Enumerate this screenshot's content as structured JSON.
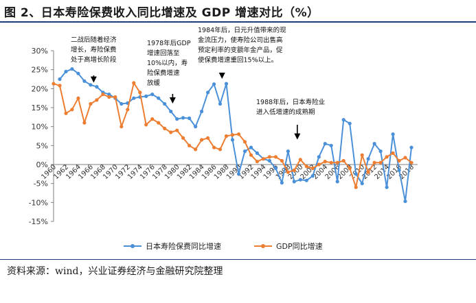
{
  "figure": {
    "title": "图 2、日本寿险保费收入同比增速及 GDP 增速对比（%）",
    "source": "资料来源：wind，兴业证券经济与金融研究院整理"
  },
  "colors": {
    "series_life": "#4a90d9",
    "series_gdp": "#ed7d31",
    "rule": "#1f3d7a"
  },
  "chart_data": {
    "type": "line",
    "title": "",
    "xlabel": "",
    "ylabel": "",
    "ylim": [
      -15,
      30
    ],
    "y_ticks": [
      "30%",
      "25%",
      "20%",
      "15%",
      "10%",
      "5%",
      "0%",
      "-5%",
      "-10%",
      "-15%"
    ],
    "y_tick_values": [
      30,
      25,
      20,
      15,
      10,
      5,
      0,
      -5,
      -10,
      -15
    ],
    "xlim": [
      1960,
      2019
    ],
    "x_ticks": [
      "1960",
      "1962",
      "1964",
      "1966",
      "1968",
      "1970",
      "1972",
      "1974",
      "1976",
      "1978",
      "1980",
      "1982",
      "1984",
      "1986",
      "1988",
      "1990",
      "1992",
      "1994",
      "1996",
      "1998",
      "2000",
      "2002",
      "2004",
      "2006",
      "2008",
      "2010",
      "2012",
      "2014",
      "2016",
      "2018"
    ],
    "x_tick_values": [
      1960,
      1962,
      1964,
      1966,
      1968,
      1970,
      1972,
      1974,
      1976,
      1978,
      1980,
      1982,
      1984,
      1986,
      1988,
      1990,
      1992,
      1994,
      1996,
      1998,
      2000,
      2002,
      2004,
      2006,
      2008,
      2010,
      2012,
      2014,
      2016,
      2018
    ],
    "grid": false,
    "legend_position": "bottom",
    "series": [
      {
        "name": "日本寿险保费同比增速",
        "color": "#4a90d9",
        "x": [
          1961,
          1962,
          1963,
          1964,
          1965,
          1966,
          1967,
          1968,
          1969,
          1970,
          1971,
          1972,
          1973,
          1974,
          1975,
          1976,
          1977,
          1978,
          1979,
          1980,
          1981,
          1982,
          1983,
          1984,
          1985,
          1986,
          1987,
          1988,
          1989,
          1990,
          1991,
          1992,
          1993,
          1994,
          1995,
          1996,
          1997,
          1998,
          1999,
          2000,
          2001,
          2002,
          2003,
          2004,
          2005,
          2006,
          2007,
          2008,
          2009,
          2010,
          2011,
          2012,
          2013,
          2014,
          2015,
          2016,
          2017,
          2018
        ],
        "values": [
          22.5,
          24.5,
          25.2,
          24.0,
          22.0,
          21.0,
          20.5,
          19.0,
          18.5,
          17.5,
          16.0,
          16.2,
          17.5,
          17.8,
          18.0,
          18.5,
          17.5,
          16.0,
          14.0,
          12.0,
          12.3,
          12.2,
          10.0,
          14.0,
          19.0,
          21.2,
          16.0,
          21.3,
          6.5,
          -2.5,
          3.5,
          4.5,
          3.0,
          1.5,
          1.0,
          -1.0,
          -4.8,
          3.5,
          -4.5,
          -4.0,
          -4.2,
          -3.0,
          2.0,
          5.5,
          5.0,
          -4.5,
          11.8,
          10.8,
          -2.5,
          -5.0,
          1.5,
          5.5,
          3.5,
          -6.0,
          8.0,
          -1.5,
          -9.7,
          4.5
        ]
      },
      {
        "name": "GDP同比增速",
        "color": "#ed7d31",
        "x": [
          1960,
          1961,
          1962,
          1963,
          1964,
          1965,
          1966,
          1967,
          1968,
          1969,
          1970,
          1971,
          1972,
          1973,
          1974,
          1975,
          1976,
          1977,
          1978,
          1979,
          1980,
          1981,
          1982,
          1983,
          1984,
          1985,
          1986,
          1987,
          1988,
          1989,
          1990,
          1991,
          1992,
          1993,
          1994,
          1995,
          1996,
          1997,
          1998,
          1999,
          2000,
          2001,
          2002,
          2003,
          2004,
          2005,
          2006,
          2007,
          2008,
          2009,
          2010,
          2011,
          2012,
          2013,
          2014,
          2015,
          2016,
          2017,
          2018
        ],
        "values": [
          21.3,
          20.8,
          13.5,
          14.5,
          17.5,
          11.0,
          16.0,
          17.0,
          18.5,
          17.8,
          17.8,
          10.0,
          14.5,
          21.5,
          19.0,
          10.5,
          12.0,
          11.0,
          9.5,
          8.5,
          9.0,
          7.0,
          5.0,
          4.0,
          6.5,
          7.0,
          4.5,
          4.0,
          7.5,
          7.8,
          8.0,
          6.0,
          2.5,
          0.8,
          1.5,
          2.0,
          2.0,
          1.0,
          -2.0,
          -1.5,
          1.3,
          -0.5,
          -1.0,
          0.0,
          0.8,
          0.5,
          0.5,
          1.0,
          -1.0,
          -6.0,
          2.5,
          -2.0,
          0.5,
          0.5,
          2.0,
          3.0,
          1.0,
          1.8,
          0.5
        ]
      }
    ],
    "annotations": [
      {
        "lines": [
          "二战后随着经济",
          "增长，寿险保费",
          "处于高增长阶段"
        ],
        "arrow_x": 1966.5,
        "arrow_y": 20.5
      },
      {
        "lines": [
          "1978年后GDP",
          "增速回落至",
          "10%以内，寿",
          "险保费增速",
          "放缓"
        ],
        "arrow_x": 1979.3,
        "arrow_y": 15.0
      },
      {
        "lines": [
          "1984年后，日元升值带来的现",
          "金流压力，使寿险公司出售高",
          "预定利率的变额年金产品，促",
          "使保费增速重回15%以上。"
        ],
        "arrow_x": 1987.3,
        "arrow_y": 21.5
      },
      {
        "lines": [
          "1988年后，日本寿险业",
          "进入低增速的成熟期"
        ],
        "arrow_x": 1999.5,
        "arrow_y": 5.5
      }
    ]
  }
}
